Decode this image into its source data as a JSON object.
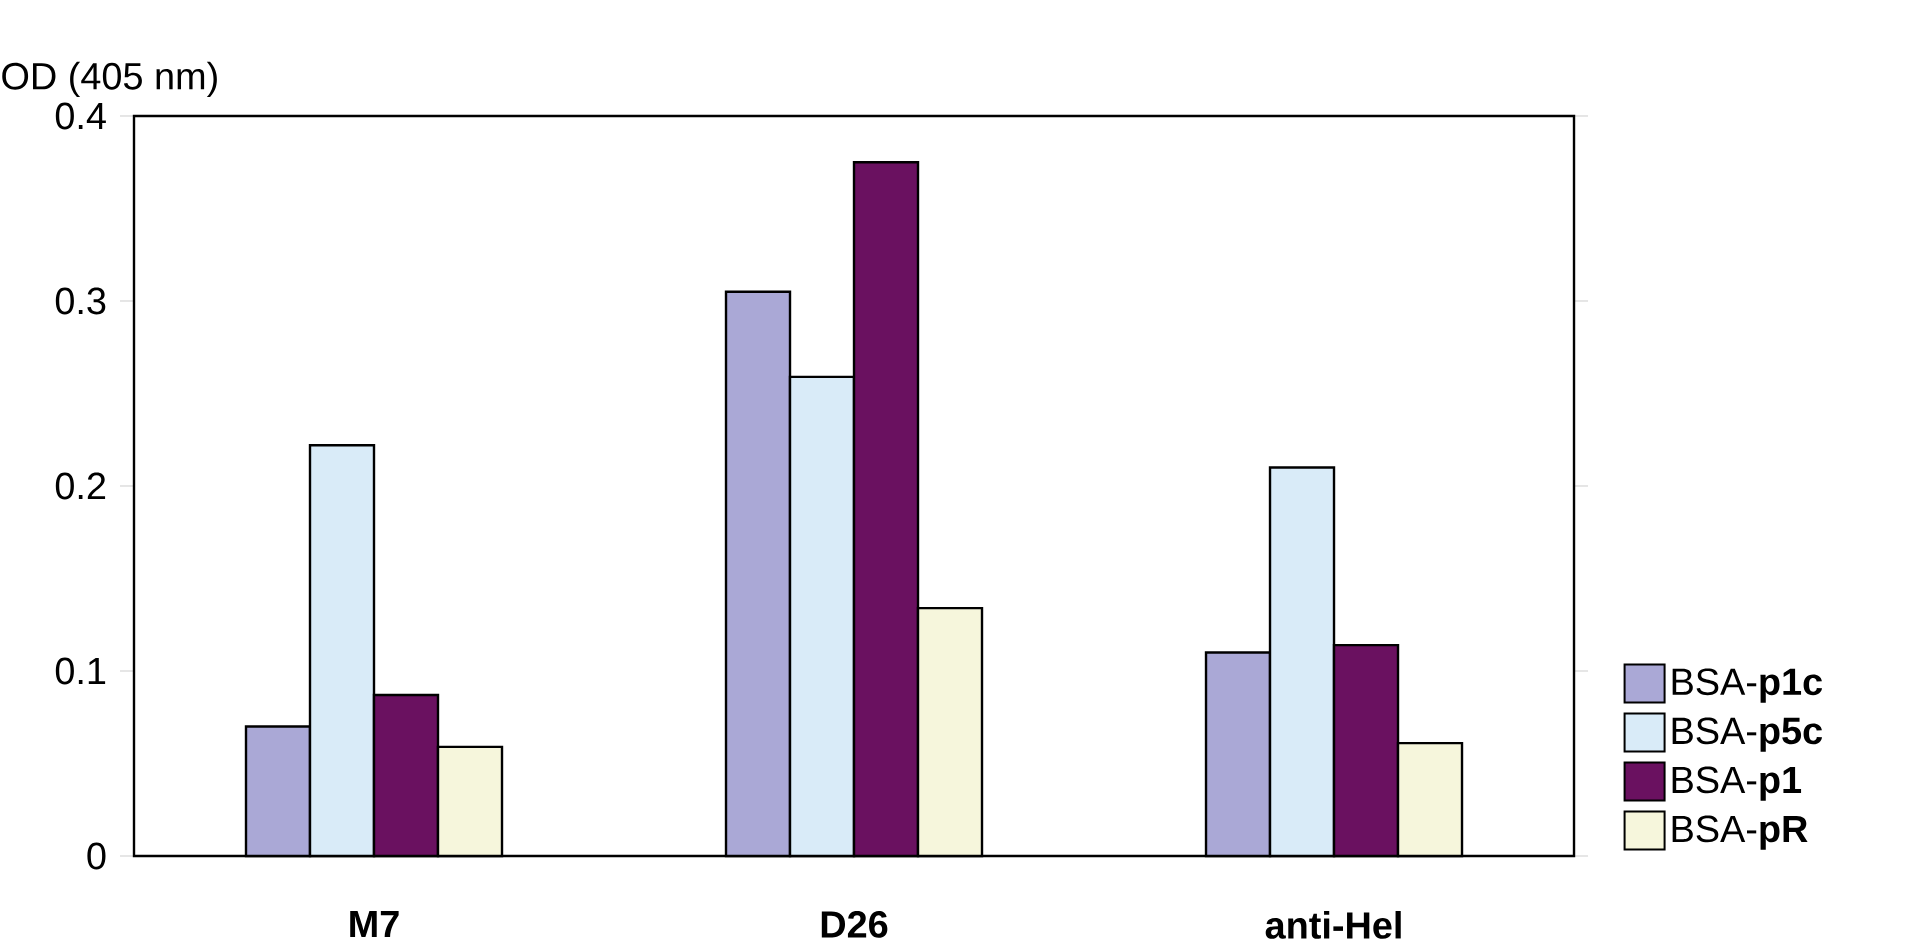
{
  "chart_data": {
    "type": "bar",
    "ylabel": "OD (405 nm)",
    "categories": [
      "M7",
      "D26",
      "anti-Hel"
    ],
    "series": [
      {
        "name": "BSA-**p1c**",
        "color": "#aaa8d6",
        "values": [
          0.07,
          0.305,
          0.11
        ]
      },
      {
        "name": "BSA-**p5c**",
        "color": "#d9ebf8",
        "values": [
          0.222,
          0.259,
          0.21
        ]
      },
      {
        "name": "BSA-**p1**",
        "color": "#6a1160",
        "values": [
          0.087,
          0.375,
          0.114
        ]
      },
      {
        "name": "BSA-**pR**",
        "color": "#f6f6dc",
        "values": [
          0.059,
          0.134,
          0.061
        ]
      }
    ],
    "ylim": [
      0,
      0.4
    ],
    "yticks": [
      0,
      0.1,
      0.2,
      0.3,
      0.4
    ],
    "grid": false,
    "legend": "right"
  }
}
